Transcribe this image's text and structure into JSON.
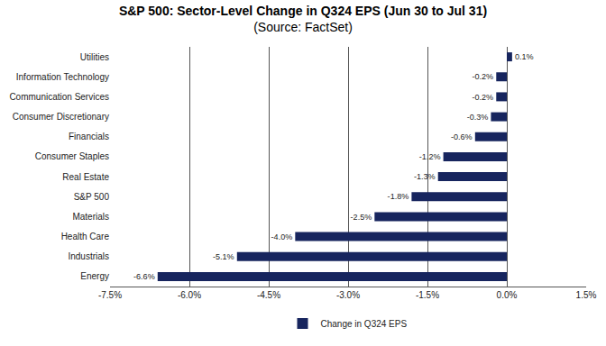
{
  "chart_data": {
    "type": "bar",
    "title": "S&P 500: Sector-Level Change in Q324 EPS (Jun 30 to Jul 31)",
    "subtitle": "(Source: FactSet)",
    "orientation": "horizontal",
    "categories": [
      "Utilities",
      "Information Technology",
      "Communication Services",
      "Consumer Discretionary",
      "Financials",
      "Consumer Staples",
      "Real Estate",
      "S&P 500",
      "Materials",
      "Health Care",
      "Industrials",
      "Energy"
    ],
    "series": [
      {
        "name": "Change in Q324 EPS",
        "color": "#17255e",
        "values": [
          0.1,
          -0.2,
          -0.2,
          -0.3,
          -0.6,
          -1.2,
          -1.3,
          -1.8,
          -2.5,
          -4.0,
          -5.1,
          -6.6
        ],
        "value_labels": [
          "0.1%",
          "-0.2%",
          "-0.2%",
          "-0.3%",
          "-0.6%",
          "-1.2%",
          "-1.3%",
          "-1.8%",
          "-2.5%",
          "-4.0%",
          "-5.1%",
          "-6.6%"
        ]
      }
    ],
    "xlim": [
      -7.5,
      1.5
    ],
    "xticks": [
      {
        "value": -7.5,
        "label": "-7.5%"
      },
      {
        "value": -6.0,
        "label": "-6.0%"
      },
      {
        "value": -4.5,
        "label": "-4.5%"
      },
      {
        "value": -3.0,
        "label": "-3.0%"
      },
      {
        "value": -1.5,
        "label": "-1.5%"
      },
      {
        "value": 0,
        "label": "0.0%"
      },
      {
        "value": 1.5,
        "label": "1.5%"
      }
    ],
    "grid": true,
    "data_labels": true,
    "legend": "bottom"
  }
}
